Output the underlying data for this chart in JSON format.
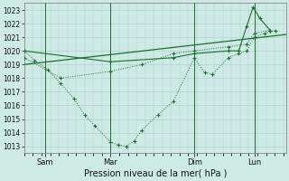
{
  "xlabel": "Pression niveau de la mer( hPa )",
  "bg_color": "#cdeae4",
  "grid_color": "#a8cfc8",
  "line_color": "#1f6b32",
  "ylim": [
    1012.5,
    1023.5
  ],
  "yticks": [
    1013,
    1014,
    1015,
    1016,
    1017,
    1018,
    1019,
    1020,
    1021,
    1022,
    1023
  ],
  "day_labels": [
    "Sam",
    "Mar",
    "Dim",
    "Lun"
  ],
  "day_positions": [
    0.08,
    0.33,
    0.65,
    0.88
  ],
  "xlim": [
    0.0,
    1.0
  ],
  "vline_x": [
    0.08,
    0.33,
    0.65,
    0.88
  ],
  "series_main_x": [
    0.0,
    0.04,
    0.09,
    0.14,
    0.19,
    0.23,
    0.27,
    0.33,
    0.36,
    0.39,
    0.42,
    0.45,
    0.51,
    0.57,
    0.65,
    0.69,
    0.72,
    0.78,
    0.82,
    0.85,
    0.88,
    0.92,
    0.96
  ],
  "series_main_y": [
    1020.0,
    1019.3,
    1018.6,
    1017.6,
    1016.5,
    1015.3,
    1014.5,
    1013.3,
    1013.1,
    1013.0,
    1013.4,
    1014.2,
    1015.3,
    1016.3,
    1019.5,
    1018.4,
    1018.3,
    1019.5,
    1019.8,
    1020.0,
    1021.0,
    1021.3,
    1021.5
  ],
  "series_smooth_x": [
    0.0,
    0.14,
    0.33,
    0.45,
    0.57,
    0.65,
    0.78,
    0.85,
    0.88,
    0.94
  ],
  "series_smooth_y": [
    1019.5,
    1018.0,
    1018.5,
    1019.0,
    1019.8,
    1020.0,
    1020.3,
    1020.5,
    1021.3,
    1021.5
  ],
  "series_trend_x": [
    0.0,
    1.0
  ],
  "series_trend_y": [
    1019.0,
    1021.2
  ],
  "series_peak_x": [
    0.0,
    0.33,
    0.57,
    0.65,
    0.78,
    0.82,
    0.85,
    0.875,
    0.9,
    0.94
  ],
  "series_peak_y": [
    1020.0,
    1019.2,
    1019.5,
    1019.8,
    1020.0,
    1020.0,
    1021.8,
    1023.2,
    1022.4,
    1021.5
  ]
}
